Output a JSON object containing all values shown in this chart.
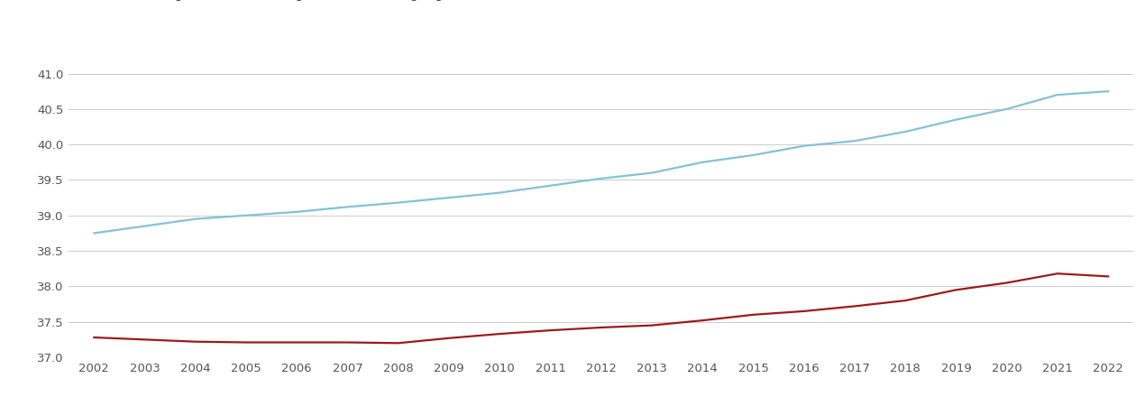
{
  "years": [
    2002,
    2003,
    2004,
    2005,
    2006,
    2007,
    2008,
    2009,
    2010,
    2011,
    2012,
    2013,
    2014,
    2015,
    2016,
    2017,
    2018,
    2019,
    2020,
    2021,
    2022
  ],
  "birmingham": [
    37.28,
    37.25,
    37.22,
    37.21,
    37.21,
    37.21,
    37.2,
    37.27,
    37.33,
    37.38,
    37.42,
    37.45,
    37.52,
    37.6,
    37.65,
    37.72,
    37.8,
    37.95,
    38.05,
    38.18,
    38.14
  ],
  "england_wales": [
    38.75,
    38.85,
    38.95,
    39.0,
    39.05,
    39.12,
    39.18,
    39.25,
    39.32,
    39.42,
    39.52,
    39.6,
    39.75,
    39.85,
    39.98,
    40.05,
    40.18,
    40.35,
    40.5,
    40.7,
    40.75
  ],
  "birmingham_color": "#9b1c1c",
  "england_wales_color": "#85c1d8",
  "ylim": [
    37.0,
    41.35
  ],
  "yticks": [
    37.0,
    37.5,
    38.0,
    38.5,
    39.0,
    39.5,
    40.0,
    40.5,
    41.0
  ],
  "background_color": "#ffffff",
  "grid_color": "#cccccc",
  "line_width": 1.6,
  "legend_fontsize": 10.5,
  "tick_fontsize": 9.5
}
